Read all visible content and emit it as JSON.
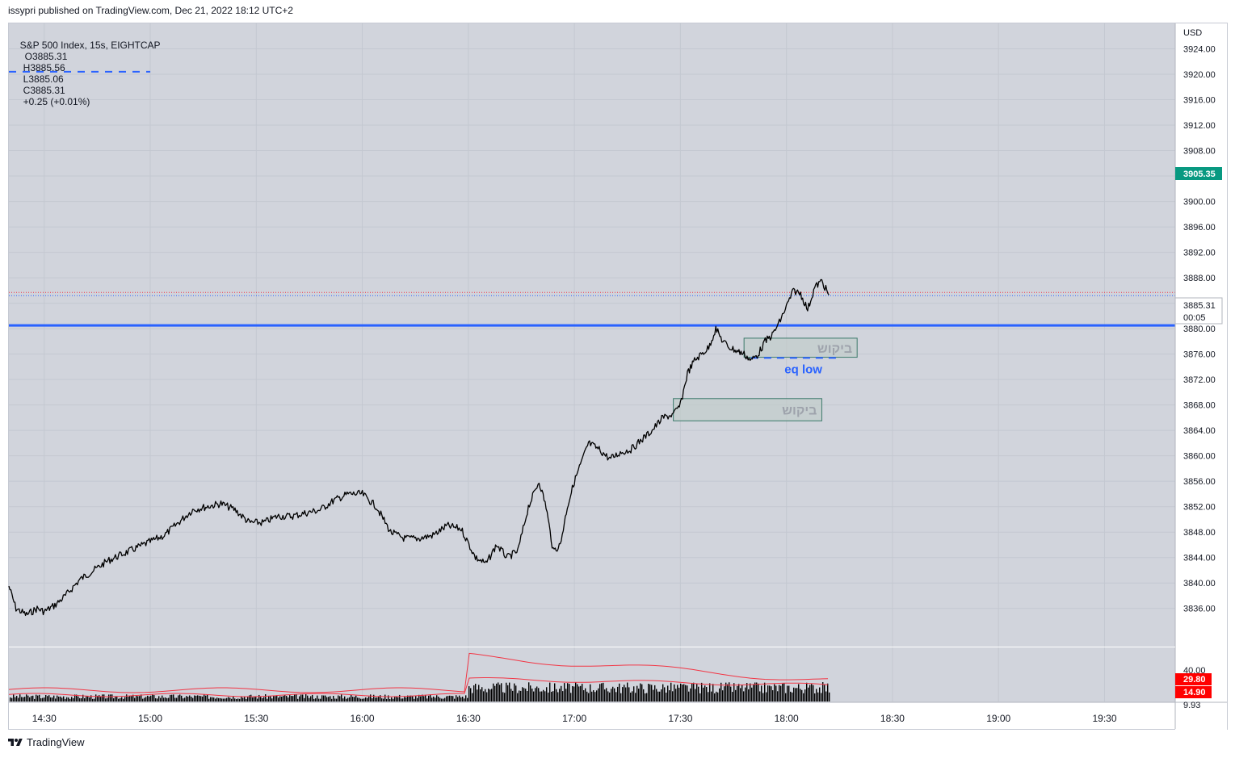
{
  "header": {
    "published": "issypri published on TradingView.com, Dec 21, 2022 18:12 UTC+2"
  },
  "legend": {
    "symbol": "S&P 500 Index, 15s, EIGHTCAP",
    "open": "O3885.31",
    "high": "H3885.56",
    "low": "L3885.06",
    "close": "C3885.31",
    "change": "+0.25 (+0.01%)"
  },
  "footer": {
    "brand": "TradingView"
  },
  "colors": {
    "background": "#d1d4dc",
    "price_line": "#000000",
    "level_line": "#2962ff",
    "current_price_badge": "#089981",
    "volume_ma": "#f23645",
    "zone_fill": "#c2cdca",
    "zone_border": "#3c7a6a"
  },
  "chart_data": {
    "type": "line",
    "currency_label": "USD",
    "price_axis": {
      "range": [
        3830,
        3928
      ],
      "ticks": [
        "3924.00",
        "3920.00",
        "3916.00",
        "3912.00",
        "3908.00",
        "3904.00",
        "3900.00",
        "3896.00",
        "3892.00",
        "3888.00",
        "3884.00",
        "3880.00",
        "3876.00",
        "3872.00",
        "3868.00",
        "3864.00",
        "3860.00",
        "3856.00",
        "3852.00",
        "3848.00",
        "3844.00",
        "3840.00",
        "3836.00"
      ]
    },
    "time_axis": {
      "labels": [
        "14:30",
        "15:00",
        "15:30",
        "16:00",
        "16:30",
        "17:00",
        "17:30",
        "18:00",
        "18:30",
        "19:00",
        "19:30"
      ],
      "range": [
        "14:20",
        "19:50"
      ]
    },
    "series": [
      {
        "x": [
          "14:20",
          "14:22",
          "14:25",
          "14:28",
          "14:30",
          "14:33",
          "14:36",
          "14:40",
          "14:44",
          "14:48",
          "14:52",
          "14:56",
          "15:00",
          "15:04",
          "15:08",
          "15:12",
          "15:16",
          "15:20",
          "15:24",
          "15:28",
          "15:32",
          "15:36",
          "15:40",
          "15:44",
          "15:48",
          "15:52",
          "15:56",
          "16:00",
          "16:04",
          "16:08",
          "16:12",
          "16:16",
          "16:20",
          "16:24",
          "16:28",
          "16:32",
          "16:35",
          "16:38",
          "16:41",
          "16:44",
          "16:47",
          "16:50",
          "16:52",
          "16:54",
          "16:56",
          "16:58",
          "17:00",
          "17:02",
          "17:04",
          "17:07",
          "17:10",
          "17:13",
          "17:16",
          "17:19",
          "17:22",
          "17:25",
          "17:28",
          "17:30",
          "17:32",
          "17:34",
          "17:36",
          "17:38",
          "17:40",
          "17:42",
          "17:44",
          "17:46",
          "17:48",
          "17:50",
          "17:52",
          "17:54",
          "17:56",
          "17:58",
          "18:00",
          "18:02",
          "18:04",
          "18:06",
          "18:08",
          "18:10",
          "18:12"
        ],
        "values": [
          3839.5,
          3836,
          3835,
          3836,
          3835.5,
          3836.5,
          3838,
          3840.5,
          3842,
          3843.5,
          3844.5,
          3845.5,
          3846.5,
          3847.5,
          3849.5,
          3851.5,
          3852,
          3852.5,
          3851.5,
          3849.5,
          3849.5,
          3850.5,
          3850.5,
          3851,
          3851.5,
          3853,
          3854,
          3854,
          3852,
          3848,
          3847,
          3847,
          3847.5,
          3849,
          3848.5,
          3844,
          3843,
          3846,
          3844,
          3845,
          3852,
          3856,
          3852,
          3845,
          3846,
          3852,
          3856,
          3859,
          3862,
          3861,
          3859.5,
          3860.5,
          3861,
          3862.5,
          3864,
          3866,
          3866.5,
          3868,
          3873,
          3875,
          3876,
          3877,
          3880,
          3878,
          3877,
          3876.5,
          3876,
          3875,
          3876,
          3878,
          3879,
          3881,
          3883.5,
          3886,
          3885.5,
          3883,
          3886.5,
          3887.5,
          3885.3
        ]
      }
    ],
    "current_price": "3885.31",
    "current_countdown": "00:05",
    "top_badge": "3905.35",
    "horizontal_levels": [
      {
        "price": 3880.5,
        "style": "solid"
      },
      {
        "price": 3920.4,
        "style": "dashed",
        "x_range": [
          "14:20",
          "15:00"
        ]
      }
    ],
    "zones": [
      {
        "label": "ביקוש",
        "price_top": 3878.5,
        "price_bottom": 3875.5,
        "x_range": [
          "17:48",
          "18:20"
        ]
      },
      {
        "label": "ביקוש",
        "price_top": 3869,
        "price_bottom": 3865.5,
        "x_range": [
          "17:28",
          "18:10"
        ]
      }
    ],
    "annotations": [
      {
        "text": "eq low",
        "price": 3875.4,
        "x_range": [
          "17:50",
          "18:15"
        ]
      }
    ],
    "volume_pane": {
      "labels": [
        "40.00",
        "29.80",
        "14.90",
        "9.93"
      ],
      "ma_values": [
        29.8,
        14.9
      ]
    }
  }
}
